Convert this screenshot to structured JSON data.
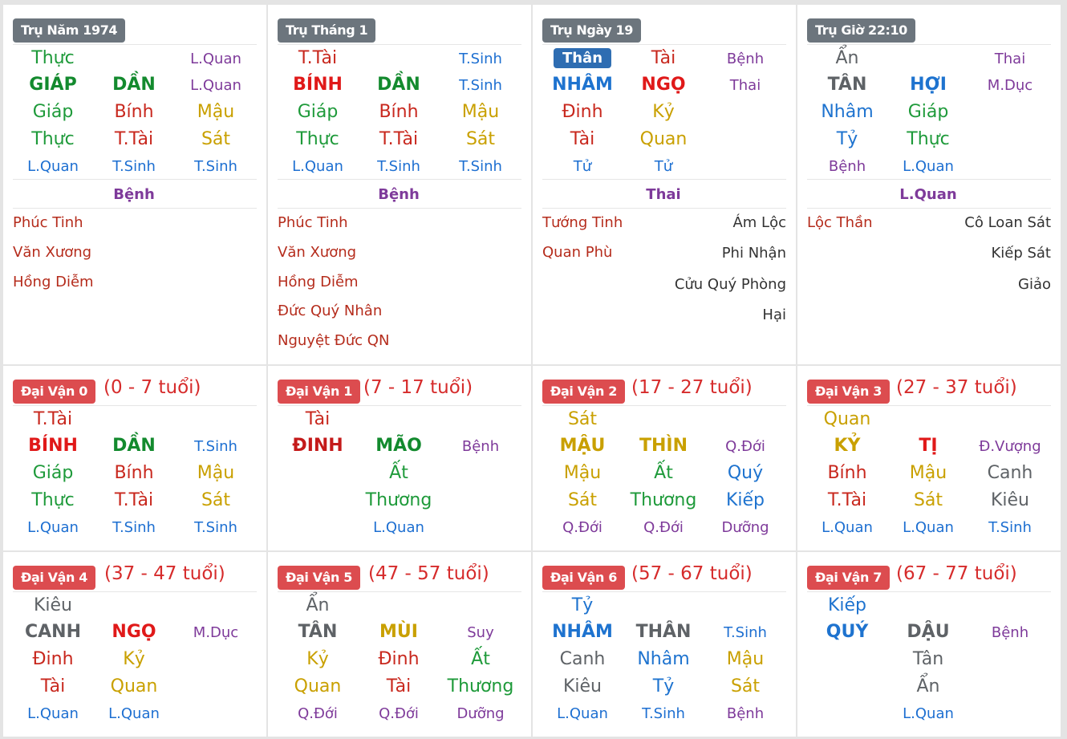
{
  "pillars": [
    {
      "title": "Trụ Năm 1974",
      "top": "Thực",
      "top_right": "L.Quan",
      "can": "GIÁP",
      "chi": "DẦN",
      "chi_right": "L.Quan",
      "hidden": [
        "Giáp",
        "Bính",
        "Mậu"
      ],
      "hidden_gods": [
        "Thực",
        "T.Tài",
        "Sát"
      ],
      "small": [
        "L.Quan",
        "T.Sinh",
        "T.Sinh"
      ],
      "phase": "Bệnh",
      "stars_left": [
        "Phúc Tinh",
        "Văn Xương",
        "Hồng Diễm"
      ],
      "stars_right": []
    },
    {
      "title": "Trụ Tháng 1",
      "top": "T.Tài",
      "top_right": "T.Sinh",
      "can": "BÍNH",
      "chi": "DẦN",
      "chi_right": "T.Sinh",
      "hidden": [
        "Giáp",
        "Bính",
        "Mậu"
      ],
      "hidden_gods": [
        "Thực",
        "T.Tài",
        "Sát"
      ],
      "small": [
        "L.Quan",
        "T.Sinh",
        "T.Sinh"
      ],
      "phase": "Bệnh",
      "stars_left": [
        "Phúc Tinh",
        "Văn Xương",
        "Hồng Diễm",
        "Đức Quý Nhân",
        "Nguyệt Đức QN"
      ],
      "stars_right": []
    },
    {
      "title": "Trụ Ngày 19",
      "top": "Thân",
      "top_mid": "Tài",
      "top_right": "Bệnh",
      "can": "NHÂM",
      "chi": "NGỌ",
      "chi_right": "Thai",
      "hidden": [
        "Đinh",
        "Kỷ"
      ],
      "hidden_gods": [
        "Tài",
        "Quan"
      ],
      "small": [
        "Tử",
        "Tử"
      ],
      "phase": "Thai",
      "stars_left": [
        "Tướng Tinh",
        "Quan Phù"
      ],
      "stars_right": [
        "Ám Lộc",
        "Phi Nhận",
        "Cửu Quý Phòng",
        "Hại"
      ]
    },
    {
      "title": "Trụ Giờ 22:10",
      "top": "Ẩn",
      "top_right": "Thai",
      "can": "TÂN",
      "chi": "HỢI",
      "chi_right": "M.Dục",
      "hidden": [
        "Nhâm",
        "Giáp"
      ],
      "hidden_gods": [
        "Tỷ",
        "Thực"
      ],
      "small": [
        "Bệnh",
        "L.Quan"
      ],
      "phase": "L.Quan",
      "stars_left": [
        "Lộc Thần"
      ],
      "stars_right": [
        "Cô Loan Sát",
        "Kiếp Sát",
        "Giảo"
      ]
    }
  ],
  "dai_van": [
    {
      "label": "Đại Vận 0",
      "age": "(0 - 7 tuổi)",
      "top": "T.Tài",
      "can": "BÍNH",
      "chi": "DẦN",
      "chi_right": "T.Sinh",
      "hidden": [
        "Giáp",
        "Bính",
        "Mậu"
      ],
      "hidden_gods": [
        "Thực",
        "T.Tài",
        "Sát"
      ],
      "small": [
        "L.Quan",
        "T.Sinh",
        "T.Sinh"
      ]
    },
    {
      "label": "Đại Vận 1",
      "age": "(7 - 17 tuổi)",
      "top": "Tài",
      "can": "ĐINH",
      "chi": "MÃO",
      "chi_right": "Bệnh",
      "hidden": [
        "Ất"
      ],
      "hidden_gods": [
        "Thương"
      ],
      "small": [
        "L.Quan"
      ]
    },
    {
      "label": "Đại Vận 2",
      "age": "(17 - 27 tuổi)",
      "top": "Sát",
      "can": "MẬU",
      "chi": "THÌN",
      "chi_right": "Q.Đới",
      "hidden": [
        "Mậu",
        "Ất",
        "Quý"
      ],
      "hidden_gods": [
        "Sát",
        "Thương",
        "Kiếp"
      ],
      "small": [
        "Q.Đới",
        "Q.Đới",
        "Dưỡng"
      ]
    },
    {
      "label": "Đại Vận 3",
      "age": "(27 - 37 tuổi)",
      "top": "Quan",
      "can": "KỶ",
      "chi": "TỊ",
      "chi_right": "Đ.Vượng",
      "hidden": [
        "Bính",
        "Mậu",
        "Canh"
      ],
      "hidden_gods": [
        "T.Tài",
        "Sát",
        "Kiêu"
      ],
      "small": [
        "L.Quan",
        "L.Quan",
        "T.Sinh"
      ]
    },
    {
      "label": "Đại Vận 4",
      "age": "(37 - 47 tuổi)",
      "top": "Kiêu",
      "can": "CANH",
      "chi": "NGỌ",
      "chi_right": "M.Dục",
      "hidden": [
        "Đinh",
        "Kỷ"
      ],
      "hidden_gods": [
        "Tài",
        "Quan"
      ],
      "small": [
        "L.Quan",
        "L.Quan"
      ]
    },
    {
      "label": "Đại Vận 5",
      "age": "(47 - 57 tuổi)",
      "top": "Ẩn",
      "can": "TÂN",
      "chi": "MÙI",
      "chi_right": "Suy",
      "hidden": [
        "Kỷ",
        "Đinh",
        "Ất"
      ],
      "hidden_gods": [
        "Quan",
        "Tài",
        "Thương"
      ],
      "small": [
        "Q.Đới",
        "Q.Đới",
        "Dưỡng"
      ]
    },
    {
      "label": "Đại Vận 6",
      "age": "(57 - 67 tuổi)",
      "top": "Tỷ",
      "can": "NHÂM",
      "chi": "THÂN",
      "chi_right": "T.Sinh",
      "hidden": [
        "Canh",
        "Nhâm",
        "Mậu"
      ],
      "hidden_gods": [
        "Kiêu",
        "Tỷ",
        "Sát"
      ],
      "small": [
        "L.Quan",
        "T.Sinh",
        "Bệnh"
      ]
    },
    {
      "label": "Đại Vận 7",
      "age": "(67 - 77 tuổi)",
      "top": "Kiếp",
      "can": "QUÝ",
      "chi": "DẬU",
      "chi_right": "Bệnh",
      "hidden": [
        "Tân"
      ],
      "hidden_gods": [
        "Ẩn"
      ],
      "small": [
        "L.Quan"
      ]
    }
  ],
  "colors": {
    "wood": "#1e9a3a",
    "fire": "#e01919",
    "earth": "#c9a000",
    "water": "#1e73cf",
    "metal": "#5e6266",
    "phase": "#7e3a9a",
    "star": "#b52c1c"
  }
}
